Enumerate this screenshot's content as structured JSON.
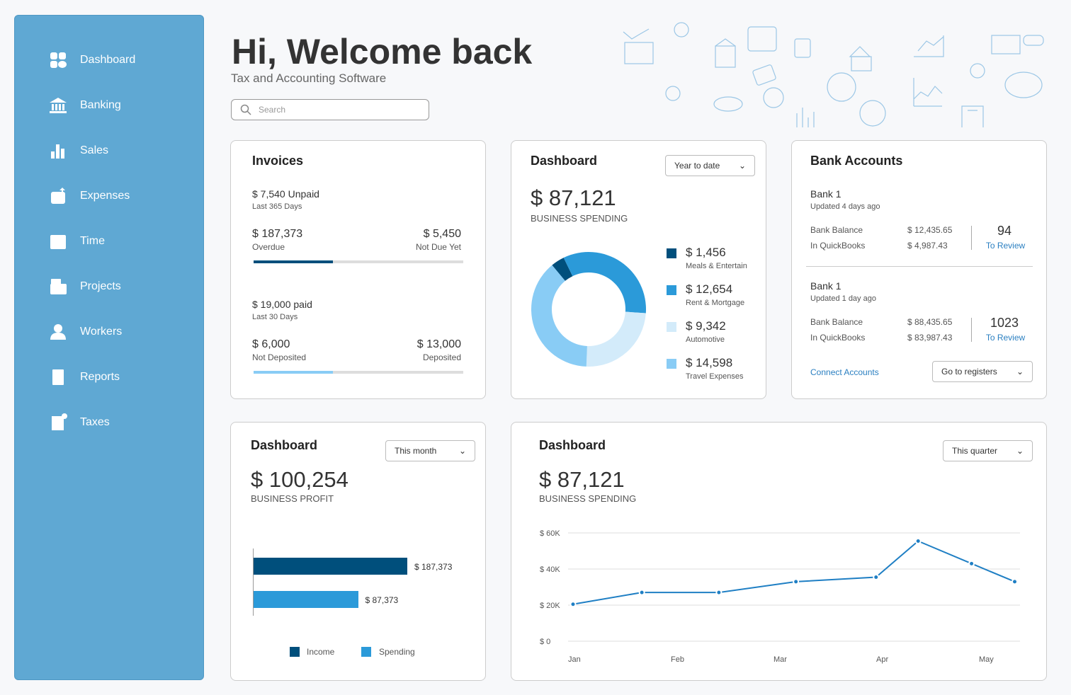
{
  "sidebar": {
    "items": [
      {
        "label": "Dashboard",
        "icon": "dashboard-icon"
      },
      {
        "label": "Banking",
        "icon": "bank-icon"
      },
      {
        "label": "Sales",
        "icon": "bar-chart-icon"
      },
      {
        "label": "Expenses",
        "icon": "wallet-icon"
      },
      {
        "label": "Time",
        "icon": "calendar-icon"
      },
      {
        "label": "Projects",
        "icon": "folder-icon"
      },
      {
        "label": "Workers",
        "icon": "worker-icon"
      },
      {
        "label": "Reports",
        "icon": "document-icon"
      },
      {
        "label": "Taxes",
        "icon": "calculator-icon"
      }
    ]
  },
  "header": {
    "title": "Hi, Welcome back",
    "subtitle": "Tax and Accounting Software",
    "search_placeholder": "Search"
  },
  "invoices": {
    "title": "Invoices",
    "unpaid": "$ 7,540 Unpaid",
    "unpaid_period": "Last 365 Days",
    "overdue_amount": "$ 187,373",
    "overdue_label": "Overdue",
    "notdue_amount": "$ 5,450",
    "notdue_label": "Not Due Yet",
    "overdue_progress": 0.38,
    "paid": "$ 19,000 paid",
    "paid_period": "Last 30 Days",
    "notdep_amount": "$ 6,000",
    "notdep_label": "Not Deposited",
    "dep_amount": "$ 13,000",
    "dep_label": "Deposited",
    "deposit_progress": 0.38
  },
  "spending": {
    "title": "Dashboard",
    "range": "Year to date",
    "amount": "$ 87,121",
    "label": "BUSINESS SPENDING"
  },
  "bank": {
    "title": "Bank Accounts",
    "accounts": [
      {
        "name": "Bank 1",
        "updated": "Updated 4 days ago",
        "balance_label": "Bank Balance",
        "balance": "$ 12,435.65",
        "qb_label": "In QuickBooks",
        "qb": "$ 4,987.43",
        "review_count": "94",
        "review_label": "To Review"
      },
      {
        "name": "Bank 1",
        "updated": "Updated 1 day ago",
        "balance_label": "Bank Balance",
        "balance": "$ 88,435.65",
        "qb_label": "In QuickBooks",
        "qb": "$ 83,987.43",
        "review_count": "1023",
        "review_label": "To Review"
      }
    ],
    "connect": "Connect Accounts",
    "registers": "Go to registers"
  },
  "profit": {
    "title": "Dashboard",
    "range": "This month",
    "amount": "$ 100,254",
    "label": "BUSINESS PROFIT"
  },
  "trend": {
    "title": "Dashboard",
    "range": "This quarter",
    "amount": "$ 87,121",
    "label": "BUSINESS SPENDING"
  },
  "chart_data": [
    {
      "type": "pie",
      "title": "Business Spending",
      "categories": [
        "Meals & Entertain",
        "Rent & Mortgage",
        "Automotive",
        "Travel Expenses"
      ],
      "value_labels": [
        "$ 1,456",
        "$ 12,654",
        "$ 9,342",
        "$ 14,598"
      ],
      "values": [
        1456,
        12654,
        9342,
        14598
      ],
      "colors": [
        "#004f7c",
        "#2b9ad9",
        "#d3ebfa",
        "#89ccf5"
      ]
    },
    {
      "type": "bar",
      "categories": [
        "Income",
        "Spending"
      ],
      "values": [
        187373,
        87373
      ],
      "value_labels": [
        "$ 187,373",
        "$ 87,373"
      ],
      "colors": [
        "#004f7c",
        "#2b9ad9"
      ],
      "legend": "bottom"
    },
    {
      "type": "line",
      "xlabels": [
        "Jan",
        "Feb",
        "Mar",
        "Apr",
        "May"
      ],
      "ylabels": [
        "$ 0",
        "$ 20K",
        "$ 40K",
        "$ 60K"
      ],
      "ylim": [
        0,
        60000
      ],
      "x": [
        0,
        0.67,
        1.42,
        2.17,
        2.95,
        3.36,
        3.88,
        4.3
      ],
      "y": [
        20500,
        27000,
        27000,
        33000,
        35500,
        55500,
        43000,
        33000
      ],
      "color": "#1f7fc4"
    }
  ]
}
